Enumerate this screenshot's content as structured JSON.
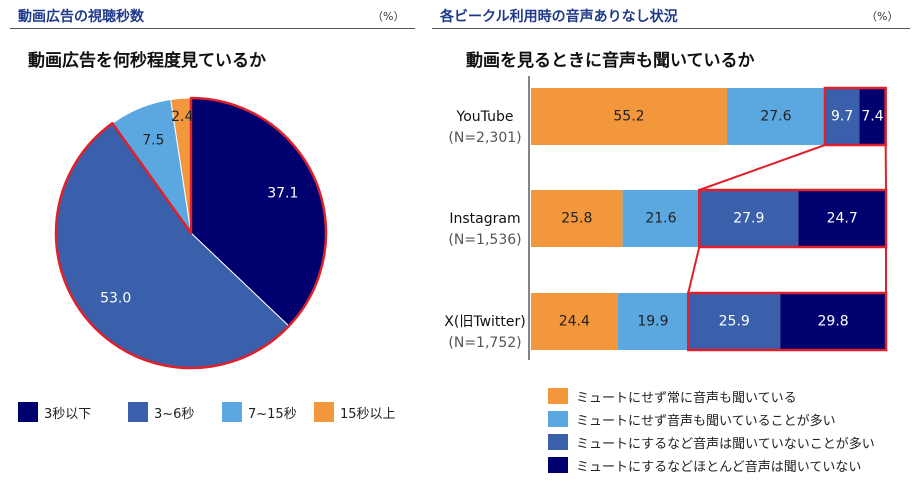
{
  "left_panel": {
    "header": "動画広告の視聴秒数",
    "unit": "（%）",
    "chart_title": "動画広告を何秒程度見ているか"
  },
  "right_panel": {
    "header": "各ビークル利用時の音声ありなし状況",
    "unit": "（%）",
    "chart_title": "動画を見るときに音声も聞いているか"
  },
  "colors": {
    "navy": "#00006e",
    "mid_blue": "#3a5fab",
    "light_blue": "#5ba7e0",
    "orange": "#f3973d",
    "highlight_red": "#e0202a"
  },
  "chart_data": [
    {
      "type": "pie",
      "title": "動画広告を何秒程度見ているか",
      "slices": [
        {
          "label": "3秒以下",
          "value": 37.1,
          "color": "#00006e"
        },
        {
          "label": "3~6秒",
          "value": 53.0,
          "color": "#3a5fab"
        },
        {
          "label": "7~15秒",
          "value": 7.5,
          "color": "#5ba7e0"
        },
        {
          "label": "15秒以上",
          "value": 2.4,
          "color": "#f3973d"
        }
      ],
      "highlighted": [
        "3秒以下",
        "3~6秒"
      ],
      "legend_position": "bottom"
    },
    {
      "type": "bar",
      "orientation": "horizontal",
      "stacked": true,
      "title": "動画を見るときに音声も聞いているか",
      "categories": [
        {
          "name": "YouTube",
          "n": "(N=2,301)"
        },
        {
          "name": "Instagram",
          "n": "(N=1,536)"
        },
        {
          "name": "X(旧Twitter)",
          "n": "(N=1,752)"
        }
      ],
      "series": [
        {
          "name": "ミュートにせず常に音声も聞いている",
          "color": "#f3973d",
          "values": [
            55.2,
            25.8,
            24.4
          ]
        },
        {
          "name": "ミュートにせず音声も聞いていることが多い",
          "color": "#5ba7e0",
          "values": [
            27.6,
            21.6,
            19.9
          ]
        },
        {
          "name": "ミュートにするなど音声は聞いていないことが多い",
          "color": "#3a5fab",
          "values": [
            9.7,
            27.9,
            25.9
          ]
        },
        {
          "name": "ミュートにするなどほとんど音声は聞いていない",
          "color": "#00006e",
          "values": [
            7.4,
            24.7,
            29.8
          ]
        }
      ],
      "xlim": [
        0,
        100
      ],
      "legend_position": "bottom"
    }
  ]
}
